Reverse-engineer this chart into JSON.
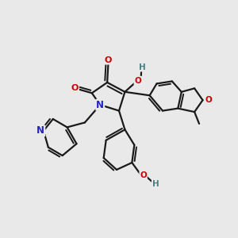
{
  "bg_color": "#e9e9e9",
  "bond_color": "#1a1a1a",
  "bond_width": 1.6,
  "atom_colors": {
    "O": "#cc0000",
    "N": "#2222cc",
    "H_teal": "#4a8080",
    "C": "#1a1a1a"
  }
}
